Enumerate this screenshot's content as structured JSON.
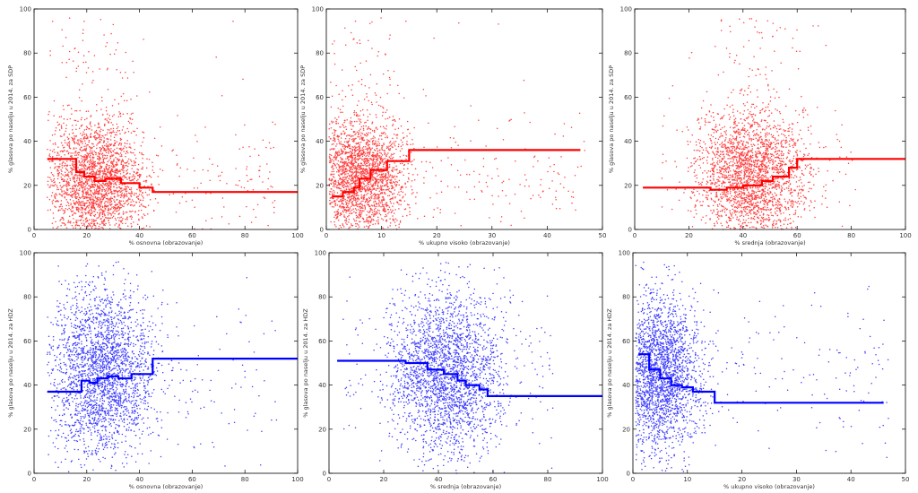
{
  "chart_data": [
    {
      "type": "scatter",
      "xlabel": "% osnovna (obrazovanje)",
      "ylabel": "% glasova po naselju u 2014. za SDP",
      "xlim": [
        0,
        100
      ],
      "ylim": [
        0,
        100
      ],
      "xticks": [
        "0",
        "20",
        "40",
        "60",
        "80",
        "100"
      ],
      "yticks": [
        "0",
        "20",
        "40",
        "60",
        "80",
        "100"
      ],
      "color": "#ff0000",
      "scatter_cloud": {
        "n": 2600,
        "x_center": 24,
        "x_spread": 11,
        "x_min": 5,
        "x_max": 92,
        "y_center": 22,
        "y_spread": 17
      },
      "step_line": {
        "x": [
          5,
          16,
          16,
          19,
          19,
          23,
          23,
          27,
          27,
          33,
          33,
          40,
          40,
          45,
          45,
          100
        ],
        "y": [
          32,
          32,
          26,
          26,
          24,
          24,
          22,
          22,
          23,
          23,
          21,
          21,
          19,
          19,
          17,
          17
        ]
      }
    },
    {
      "type": "scatter",
      "xlabel": "% ukupno visoko (obrazovanje)",
      "ylabel": "% glasova po naselju u 2014. za SDP",
      "xlim": [
        0,
        50
      ],
      "ylim": [
        0,
        100
      ],
      "xticks": [
        "0",
        "10",
        "20",
        "30",
        "40",
        "50"
      ],
      "yticks": [
        "0",
        "20",
        "40",
        "60",
        "80",
        "100"
      ],
      "color": "#ff0000",
      "scatter_cloud": {
        "n": 2600,
        "x_center": 6,
        "x_spread": 5,
        "x_min": 0.5,
        "x_max": 47,
        "y_center": 24,
        "y_spread": 16
      },
      "step_line": {
        "x": [
          1,
          3,
          3,
          5,
          5,
          6,
          6,
          8,
          8,
          11,
          11,
          15,
          15,
          46
        ],
        "y": [
          15,
          15,
          17,
          17,
          19,
          19,
          23,
          23,
          27,
          27,
          31,
          31,
          36,
          36
        ]
      }
    },
    {
      "type": "scatter",
      "xlabel": "% srednja (obrazovanje)",
      "ylabel": "% glasova po naselju u 2014. za SDP",
      "xlim": [
        0,
        100
      ],
      "ylim": [
        0,
        100
      ],
      "xticks": [
        "0",
        "20",
        "40",
        "60",
        "80",
        "100"
      ],
      "yticks": [
        "0",
        "20",
        "40",
        "60",
        "80",
        "100"
      ],
      "color": "#ff0000",
      "scatter_cloud": {
        "n": 2600,
        "x_center": 43,
        "x_spread": 12,
        "x_min": 8,
        "x_max": 82,
        "y_center": 24,
        "y_spread": 18
      },
      "step_line": {
        "x": [
          3,
          28,
          28,
          34,
          34,
          40,
          40,
          47,
          47,
          51,
          51,
          57,
          57,
          60,
          60,
          100
        ],
        "y": [
          19,
          19,
          18,
          18,
          19,
          19,
          20,
          20,
          22,
          22,
          24,
          24,
          28,
          28,
          32,
          32
        ]
      }
    },
    {
      "type": "scatter",
      "xlabel": "% osnovna (obrazovanje)",
      "ylabel": "% glasova po naselju u 2014. za HDZ",
      "xlim": [
        0,
        100
      ],
      "ylim": [
        0,
        100
      ],
      "xticks": [
        "0",
        "20",
        "40",
        "60",
        "80",
        "100"
      ],
      "yticks": [
        "0",
        "20",
        "40",
        "60",
        "80",
        "100"
      ],
      "color": "#0000ff",
      "scatter_cloud": {
        "n": 2600,
        "x_center": 26,
        "x_spread": 12,
        "x_min": 5,
        "x_max": 92,
        "y_center": 45,
        "y_spread": 22
      },
      "step_line": {
        "x": [
          5,
          18,
          18,
          21,
          21,
          24,
          24,
          28,
          28,
          32,
          32,
          37,
          37,
          45,
          45,
          100
        ],
        "y": [
          37,
          37,
          42,
          42,
          41,
          41,
          43,
          43,
          44,
          44,
          43,
          43,
          45,
          45,
          52,
          52
        ]
      }
    },
    {
      "type": "scatter",
      "xlabel": "% srednja (obrazovanje)",
      "ylabel": "% glasova po naselju u 2014. za HDZ",
      "xlim": [
        0,
        100
      ],
      "ylim": [
        0,
        100
      ],
      "xticks": [
        "0",
        "20",
        "40",
        "60",
        "80",
        "100"
      ],
      "yticks": [
        "0",
        "20",
        "40",
        "60",
        "80",
        "100"
      ],
      "color": "#0000ff",
      "scatter_cloud": {
        "n": 2600,
        "x_center": 43,
        "x_spread": 12,
        "x_min": 5,
        "x_max": 82,
        "y_center": 45,
        "y_spread": 22
      },
      "step_line": {
        "x": [
          3,
          28,
          28,
          36,
          36,
          42,
          42,
          47,
          47,
          50,
          50,
          55,
          55,
          58,
          58,
          100
        ],
        "y": [
          51,
          51,
          50,
          50,
          47,
          47,
          45,
          45,
          42,
          42,
          40,
          40,
          38,
          38,
          35,
          35
        ]
      }
    },
    {
      "type": "scatter",
      "xlabel": "% ukupno visoko (obrazovanje)",
      "ylabel": "% glasova po naselju u 2014. za HDZ",
      "xlim": [
        0,
        50
      ],
      "ylim": [
        0,
        100
      ],
      "xticks": [
        "0",
        "10",
        "20",
        "30",
        "40",
        "50"
      ],
      "yticks": [
        "0",
        "20",
        "40",
        "60",
        "80",
        "100"
      ],
      "color": "#0000ff",
      "scatter_cloud": {
        "n": 2600,
        "x_center": 5,
        "x_spread": 4.5,
        "x_min": 0.5,
        "x_max": 47,
        "y_center": 45,
        "y_spread": 20
      },
      "step_line": {
        "x": [
          1,
          3,
          3,
          5,
          5,
          7,
          7,
          9,
          9,
          11,
          11,
          15,
          15,
          46
        ],
        "y": [
          54,
          54,
          47,
          47,
          43,
          43,
          40,
          40,
          39,
          39,
          37,
          37,
          32,
          32
        ]
      }
    }
  ]
}
